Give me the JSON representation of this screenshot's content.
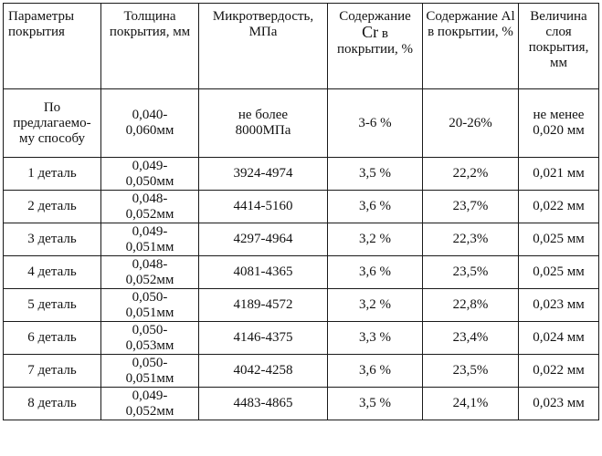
{
  "table": {
    "headers": [
      "Параметры покрытия",
      "Толщина покрытия, мм",
      "Микротвердость, МПа",
      [
        "Содержание",
        "Cr",
        " в покрытии, %"
      ],
      "Содержание Al в покрытии, %",
      "Величина слоя покрытия, мм"
    ],
    "rows": [
      {
        "param": "По предлагаемо-му способу",
        "thickness": [
          "0,040-",
          "0,060мм"
        ],
        "hardness": [
          "не более",
          "8000МПа"
        ],
        "cr": "3-6 %",
        "al": "20-26%",
        "layer": [
          "не менее",
          "0,020 мм"
        ]
      },
      {
        "param": "1 деталь",
        "thickness": [
          "0,049-",
          "0,050мм"
        ],
        "hardness": "3924-4974",
        "cr": "3,5 %",
        "al": "22,2%",
        "layer": "0,021  мм"
      },
      {
        "param": "2 деталь",
        "thickness": [
          "0,048-",
          "0,052мм"
        ],
        "hardness": "4414-5160",
        "cr": "3,6 %",
        "al": "23,7%",
        "layer": "0,022 мм"
      },
      {
        "param": "3 деталь",
        "thickness": [
          "0,049-",
          "0,051мм"
        ],
        "hardness": "4297-4964",
        "cr": "3,2 %",
        "al": "22,3%",
        "layer": "0,025 мм"
      },
      {
        "param": "4 деталь",
        "thickness": [
          "0,048-",
          "0,052мм"
        ],
        "hardness": "4081-4365",
        "cr": "3,6 %",
        "al": "23,5%",
        "layer": "0,025 мм"
      },
      {
        "param": "5 деталь",
        "thickness": [
          "0,050-",
          "0,051мм"
        ],
        "hardness": "4189-4572",
        "cr": "3,2 %",
        "al": "22,8%",
        "layer": "0,023 мм"
      },
      {
        "param": "6 деталь",
        "thickness": [
          "0,050-",
          "0,053мм"
        ],
        "hardness": "4146-4375",
        "cr": "3,3 %",
        "al": "23,4%",
        "layer": "0,024 мм"
      },
      {
        "param": "7 деталь",
        "thickness": [
          "0,050-",
          "0,051мм"
        ],
        "hardness": "4042-4258",
        "cr": "3,6 %",
        "al": "23,5%",
        "layer": "0,022 мм"
      },
      {
        "param": "8 деталь",
        "thickness": [
          "0,049-",
          "0,052мм"
        ],
        "hardness": "4483-4865",
        "cr": "3,5 %",
        "al": "24,1%",
        "layer": "0,023 мм"
      }
    ]
  }
}
